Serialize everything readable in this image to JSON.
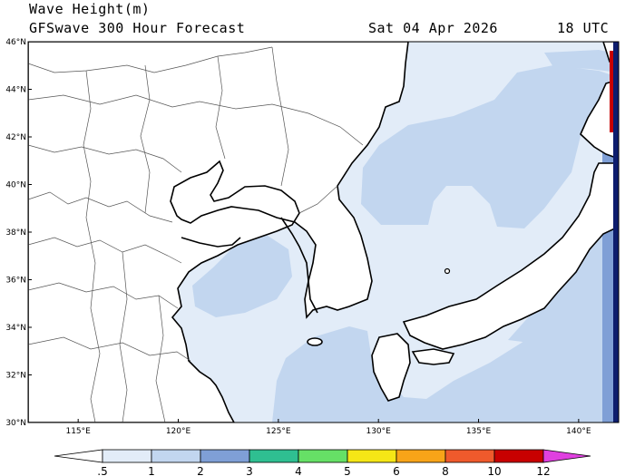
{
  "header": {
    "title": "Wave Height(m)",
    "model": "GFSwave 300 Hour Forecast",
    "date": "Sat 04 Apr 2026",
    "time": "18 UTC"
  },
  "map": {
    "variable": "Wave Height",
    "units": "m",
    "lat_ticks": [
      "30°N",
      "32°N",
      "34°N",
      "36°N",
      "38°N",
      "40°N",
      "42°N",
      "44°N",
      "46°N"
    ],
    "lon_ticks": [
      "115°E",
      "120°E",
      "125°E",
      "130°E",
      "135°E",
      "140°E"
    ],
    "lat_range": [
      30,
      46
    ],
    "lon_range": [
      112.5,
      142
    ]
  },
  "colorbar": {
    "labels": [
      ".5",
      "1",
      "2",
      "3",
      "4",
      "5",
      "6",
      "8",
      "10",
      "12"
    ],
    "colors": [
      "#e2ecf8",
      "#c2d6ef",
      "#7f9fd6",
      "#2fbf91",
      "#66e066",
      "#f5e616",
      "#f8a418",
      "#ef5a2c",
      "#c80000",
      "#e040e0"
    ]
  }
}
